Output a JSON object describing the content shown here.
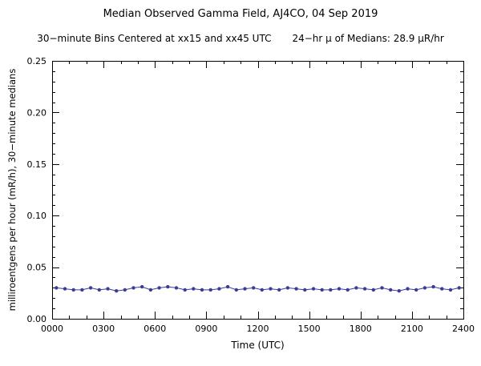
{
  "title": "Median Observed Gamma Field, AJ4CO, 04 Sep 2019",
  "subtitle_left": "30−minute Bins Centered at xx15 and xx45 UTC",
  "subtitle_right": "24−hr μ of Medians: 28.9 μR/hr",
  "chart_data": {
    "type": "line",
    "title": "Median Observed Gamma Field, AJ4CO, 04 Sep 2019",
    "xlabel": "Time (UTC)",
    "ylabel": "milliroentgens per hour (mR/h), 30−minute medians",
    "xlim": [
      0,
      24
    ],
    "ylim": [
      0,
      0.25
    ],
    "grid": false,
    "x_ticks": {
      "values": [
        0,
        3,
        6,
        9,
        12,
        15,
        18,
        21,
        24
      ],
      "labels": [
        "0000",
        "0300",
        "0600",
        "0900",
        "1200",
        "1500",
        "1800",
        "2100",
        "2400"
      ]
    },
    "y_ticks": {
      "values": [
        0.0,
        0.05,
        0.1,
        0.15,
        0.2,
        0.25
      ],
      "labels": [
        "0.00",
        "0.05",
        "0.10",
        "0.15",
        "0.20",
        "0.25"
      ]
    },
    "x_minor_step": 1,
    "y_minor_step": 0.01,
    "mean_of_medians_uR_hr": 28.9,
    "point_color": "#3c3c96",
    "line_color": "#3c3c96",
    "x_hours": [
      0.25,
      0.75,
      1.25,
      1.75,
      2.25,
      2.75,
      3.25,
      3.75,
      4.25,
      4.75,
      5.25,
      5.75,
      6.25,
      6.75,
      7.25,
      7.75,
      8.25,
      8.75,
      9.25,
      9.75,
      10.25,
      10.75,
      11.25,
      11.75,
      12.25,
      12.75,
      13.25,
      13.75,
      14.25,
      14.75,
      15.25,
      15.75,
      16.25,
      16.75,
      17.25,
      17.75,
      18.25,
      18.75,
      19.25,
      19.75,
      20.25,
      20.75,
      21.25,
      21.75,
      22.25,
      22.75,
      23.25,
      23.75
    ],
    "values": [
      0.03,
      0.029,
      0.028,
      0.028,
      0.03,
      0.028,
      0.029,
      0.027,
      0.028,
      0.03,
      0.031,
      0.028,
      0.03,
      0.031,
      0.03,
      0.028,
      0.029,
      0.028,
      0.028,
      0.029,
      0.031,
      0.028,
      0.029,
      0.03,
      0.028,
      0.029,
      0.028,
      0.03,
      0.029,
      0.028,
      0.029,
      0.028,
      0.028,
      0.029,
      0.028,
      0.03,
      0.029,
      0.028,
      0.03,
      0.028,
      0.027,
      0.029,
      0.028,
      0.03,
      0.031,
      0.029,
      0.028,
      0.03
    ]
  }
}
